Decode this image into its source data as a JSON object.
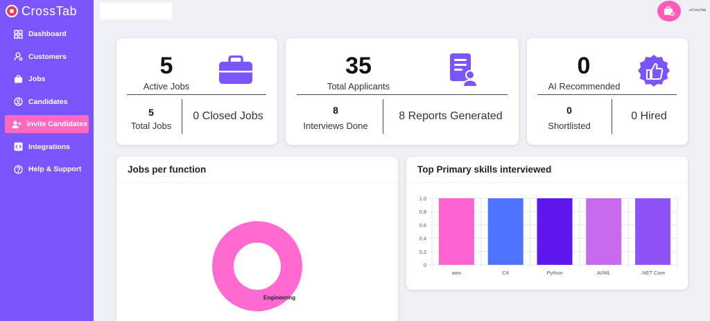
{
  "brand": {
    "name": "CrossTab",
    "mini": "CrossTab"
  },
  "sidebar": {
    "items": [
      {
        "label": "Dashboard",
        "icon": "dashboard-icon"
      },
      {
        "label": "Customers",
        "icon": "customers-icon"
      },
      {
        "label": "Jobs",
        "icon": "briefcase-icon"
      },
      {
        "label": "Candidates",
        "icon": "user-circle-icon"
      },
      {
        "label": "Invite Candidates",
        "icon": "user-plus-icon",
        "active": true
      },
      {
        "label": "Integrations",
        "icon": "code-icon"
      },
      {
        "label": "Help & Support",
        "icon": "help-icon"
      }
    ]
  },
  "cards": {
    "jobs": {
      "value": "5",
      "label": "Active Jobs",
      "left_num": "5",
      "left_label": "Total Jobs",
      "right_text": "0 Closed Jobs"
    },
    "applicants": {
      "value": "35",
      "label": "Total Applicants",
      "left_num": "8",
      "left_label": "Interviews Done",
      "right_text": "8 Reports Generated"
    },
    "ai": {
      "value": "0",
      "label": "AI Recommended",
      "left_num": "0",
      "left_label": "Shortlisted",
      "right_text": "0 Hired"
    }
  },
  "charts": {
    "jobs_title": "Jobs per function",
    "skills_title": "Top Primary skills interviewed"
  },
  "colors": {
    "sidebar": "#7a55fb",
    "accent": "#ff68c0",
    "icon_purple": "#7a55fb"
  },
  "chart_data": [
    {
      "type": "pie",
      "title": "Jobs per function",
      "labels": [
        "Engineering"
      ],
      "values": [
        5
      ],
      "colors": [
        "#ff6ad1"
      ]
    },
    {
      "type": "bar",
      "title": "Top Primary skills interviewed",
      "categories": [
        "aws",
        "C#",
        "Python",
        "AI/ML",
        ".NET Core"
      ],
      "values": [
        1.0,
        1.0,
        1.0,
        1.0,
        1.0
      ],
      "colors": [
        "#ff63d2",
        "#4f72ff",
        "#5e18ee",
        "#c86aee",
        "#8e52f7"
      ],
      "yticks": [
        "0",
        "0.2",
        "0.4",
        "0.6",
        "0.8",
        "1.0"
      ],
      "ylim": [
        0,
        1.0
      ]
    }
  ]
}
